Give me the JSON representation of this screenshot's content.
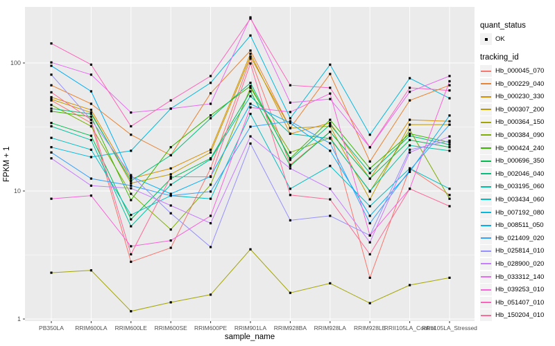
{
  "figure": {
    "background": "#FFFFFF",
    "panel_background": "#EBEBEB",
    "grid_color": "#FFFFFF",
    "tick_color": "#333333",
    "axis_text_color": "#4D4D4D",
    "legend_key_fill": "#F2F2F2",
    "point_color": "#000000"
  },
  "axes": {
    "x_title": "sample_name",
    "y_title": "FPKM + 1",
    "y_tick_labels": [
      "1",
      "10",
      "100"
    ]
  },
  "legend": {
    "quant_title": "quant_status",
    "quant_items": [
      {
        "label": "OK",
        "marker": "black-square-point"
      }
    ],
    "tracking_title": "tracking_id"
  },
  "chart_data": {
    "type": "line",
    "title": "",
    "xlabel": "sample_name",
    "ylabel": "FPKM + 1",
    "x_type": "categorical",
    "y_scale": "log10",
    "ylim": [
      1,
      280
    ],
    "y_major_breaks": [
      1,
      10,
      100
    ],
    "y_minor_breaks": [
      3.162,
      31.62
    ],
    "grid": true,
    "legend_position": "right",
    "point_marker": {
      "shape": "square",
      "color": "#000000",
      "meaning": "quant_status OK"
    },
    "categories": [
      "PB350LA",
      "RRIM600LA",
      "RRIM600LE",
      "RRIM600SE",
      "RRIM600PE",
      "RRIM901LA",
      "RRIM928BA",
      "RRIM928LA",
      "RRIM928LE",
      "RRII105LA_Control",
      "RRII105LA_Stressed"
    ],
    "series": [
      {
        "name": "Hb_000045_070",
        "color": "#F8766D",
        "values": [
          51,
          34,
          2.8,
          3.6,
          15,
          108,
          16,
          29,
          2.1,
          15,
          9.3
        ]
      },
      {
        "name": "Hb_000229_040",
        "color": "#EA8331",
        "values": [
          67,
          48,
          27.5,
          19,
          58,
          125,
          31,
          82,
          17,
          51,
          67
        ]
      },
      {
        "name": "Hb_000230_330",
        "color": "#D89000",
        "values": [
          54,
          43,
          12.5,
          15,
          21,
          118,
          28,
          34,
          12.5,
          36,
          35
        ]
      },
      {
        "name": "Hb_000307_200",
        "color": "#C09B00",
        "values": [
          52,
          41,
          11.5,
          13.5,
          20,
          112,
          31,
          32,
          8.6,
          33,
          33
        ]
      },
      {
        "name": "Hb_000364_150",
        "color": "#A3A500",
        "values": [
          2.3,
          2.4,
          1.15,
          1.35,
          1.55,
          3.5,
          1.6,
          1.9,
          1.33,
          1.84,
          2.1
        ]
      },
      {
        "name": "Hb_000384_090",
        "color": "#7CAE00",
        "values": [
          47,
          32,
          9.5,
          5.0,
          11.2,
          64,
          20,
          26,
          9.9,
          30,
          8.7
        ]
      },
      {
        "name": "Hb_000424_240",
        "color": "#39B600",
        "values": [
          42,
          38,
          8.5,
          22,
          39,
          66,
          18,
          36,
          15,
          28,
          24
        ]
      },
      {
        "name": "Hb_000696_350",
        "color": "#00BB4E",
        "values": [
          34,
          27,
          6.0,
          12.5,
          18,
          60,
          15.7,
          29,
          12.5,
          25,
          22
        ]
      },
      {
        "name": "Hb_002046_040",
        "color": "#00BF7D",
        "values": [
          44,
          40,
          12,
          19,
          37,
          70,
          17.5,
          33,
          13.8,
          27,
          23
        ]
      },
      {
        "name": "Hb_003195_060",
        "color": "#00C1A3",
        "values": [
          32,
          25,
          5.3,
          11.2,
          17.7,
          55,
          28,
          25.7,
          10,
          22.7,
          20.6
        ]
      },
      {
        "name": "Hb_003434_060",
        "color": "#00BFC4",
        "values": [
          26,
          21,
          6.5,
          9.2,
          8.7,
          40,
          10.4,
          15.7,
          7.6,
          15,
          10.4
        ]
      },
      {
        "name": "Hb_007192_080",
        "color": "#00BAE0",
        "values": [
          22,
          18.4,
          20.6,
          44,
          70,
          164,
          37,
          97,
          27.5,
          76,
          53
        ]
      },
      {
        "name": "Hb_008511_050",
        "color": "#00B0F6",
        "values": [
          95,
          60,
          13,
          9.5,
          13,
          48,
          34,
          20.6,
          6.4,
          14.1,
          38.9
        ]
      },
      {
        "name": "Hb_021409_020",
        "color": "#35A2FF",
        "values": [
          20,
          12.5,
          11,
          9.2,
          9.9,
          31.8,
          35,
          23.6,
          5.6,
          14.5,
          33
        ]
      },
      {
        "name": "Hb_025814_010",
        "color": "#9590FF",
        "values": [
          81,
          36,
          13.3,
          6.7,
          3.65,
          23.5,
          5.9,
          6.4,
          4.5,
          21,
          24.7
        ]
      },
      {
        "name": "Hb_028900_020",
        "color": "#C77CFF",
        "values": [
          18,
          11,
          10.5,
          7.7,
          5.6,
          26.7,
          15,
          10.4,
          3.97,
          20,
          26.7
        ]
      },
      {
        "name": "Hb_033312_140",
        "color": "#E76BF3",
        "values": [
          101,
          81,
          41,
          44,
          48,
          227,
          49,
          52.3,
          21.9,
          59.5,
          79
        ]
      },
      {
        "name": "Hb_039253_010",
        "color": "#FA62DB",
        "values": [
          8.7,
          9.2,
          3.7,
          4.1,
          6.4,
          45,
          41.4,
          57.7,
          4.5,
          10.4,
          72
        ]
      },
      {
        "name": "Hb_051407_010",
        "color": "#FF62BC",
        "values": [
          142,
          97,
          32,
          51,
          79,
          222,
          67,
          64,
          22,
          64,
          61
        ]
      },
      {
        "name": "Hb_150204_010",
        "color": "#FF6A98",
        "values": [
          59,
          36,
          3.2,
          12.9,
          12.9,
          99,
          9.3,
          8.6,
          3.2,
          10.4,
          7.6
        ]
      }
    ]
  }
}
